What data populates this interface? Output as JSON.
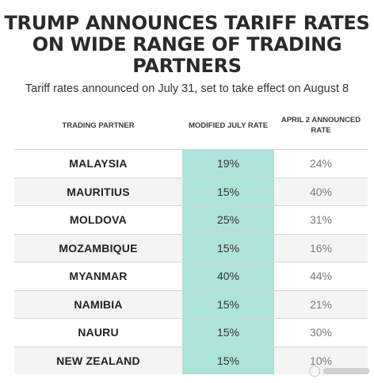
{
  "header": {
    "title": "TRUMP ANNOUNCES TARIFF RATES ON WIDE RANGE OF TRADING PARTNERS",
    "subtitle": "Tariff rates announced on July 31, set to take effect on August 8"
  },
  "table": {
    "columns": {
      "partner": "TRADING PARTNER",
      "modified": "MODIFIED JULY RATE",
      "april": "APRIL 2 ANNOUNCED RATE"
    },
    "rows": [
      {
        "partner": "MALAYSIA",
        "modified": "19%",
        "april": "24%"
      },
      {
        "partner": "MAURITIUS",
        "modified": "15%",
        "april": "40%"
      },
      {
        "partner": "MOLDOVA",
        "modified": "25%",
        "april": "31%"
      },
      {
        "partner": "MOZAMBIQUE",
        "modified": "15%",
        "april": "16%"
      },
      {
        "partner": "MYANMAR",
        "modified": "40%",
        "april": "44%"
      },
      {
        "partner": "NAMIBIA",
        "modified": "15%",
        "april": "21%"
      },
      {
        "partner": "NAURU",
        "modified": "15%",
        "april": "30%"
      },
      {
        "partner": "NEW ZEALAND",
        "modified": "15%",
        "april": "10%"
      }
    ]
  },
  "colors": {
    "highlight_column": "#aee3da",
    "row_alt": "#f4f4f4",
    "divider": "#d6d6d6"
  },
  "watermark": {
    "icon": "watermark-logo-icon"
  }
}
